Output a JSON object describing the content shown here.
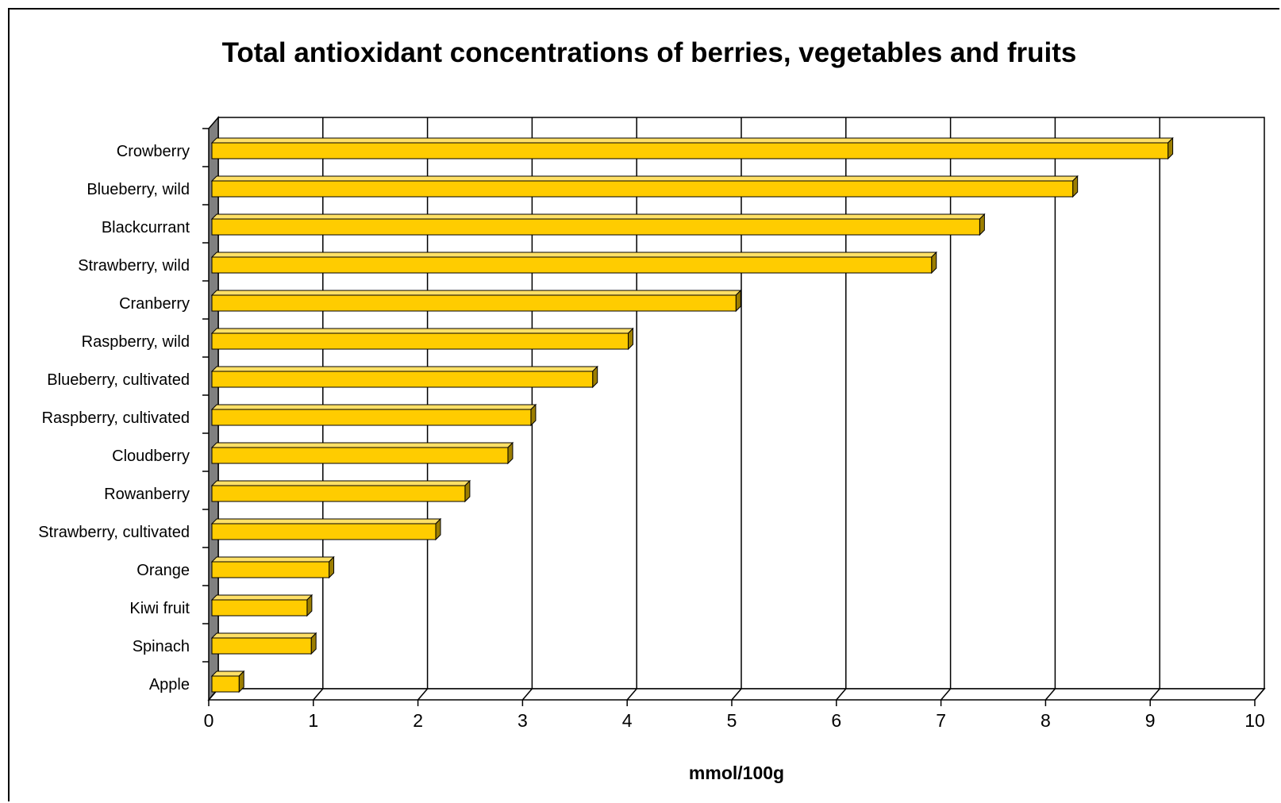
{
  "chart_data": {
    "type": "bar",
    "orientation": "horizontal",
    "style": "3d-clustered",
    "title": "Total antioxidant concentrations of berries, vegetables and fruits",
    "xlabel": "mmol/100g",
    "ylabel": "",
    "xlim": [
      0,
      10
    ],
    "ticks": [
      "0",
      "1",
      "2",
      "3",
      "4",
      "5",
      "6",
      "7",
      "8",
      "9",
      "10"
    ],
    "grid": "vertical",
    "legend": "none",
    "colors": {
      "bar_front": "#FFCC00",
      "bar_top": "#FFE066",
      "bar_side": "#9C7E00",
      "floor": "#808080",
      "grid": "#000000"
    },
    "categories": [
      "Crowberry",
      "Blueberry, wild",
      "Blackcurrant",
      "Strawberry, wild",
      "Cranberry",
      "Raspberry, wild",
      "Blueberry, cultivated",
      "Raspberry, cultivated",
      "Cloudberry",
      "Rowanberry",
      "Strawberry, cultivated",
      "Orange",
      "Kiwi fruit",
      "Spinach",
      "Apple"
    ],
    "values": [
      9.17,
      8.26,
      7.37,
      6.91,
      5.04,
      4.01,
      3.67,
      3.08,
      2.86,
      2.45,
      2.17,
      1.15,
      0.94,
      0.98,
      0.29
    ]
  }
}
